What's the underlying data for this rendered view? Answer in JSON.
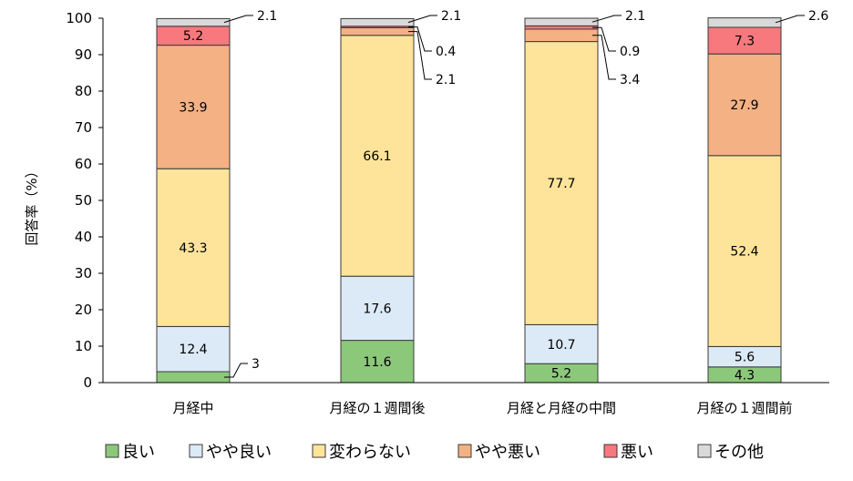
{
  "chart_data": {
    "type": "bar",
    "stacked": true,
    "orientation": "vertical",
    "ylabel": "回答率（%）",
    "xlabel": "",
    "ylim": [
      0,
      100
    ],
    "yticks": [
      0,
      10,
      20,
      30,
      40,
      50,
      60,
      70,
      80,
      90,
      100
    ],
    "grid": false,
    "legend_position": "bottom",
    "categories": [
      "月経中",
      "月経の１週間後",
      "月経と月経の中間",
      "月経の１週間前"
    ],
    "series": [
      {
        "name": "良い",
        "color": "#8cc87a",
        "values": [
          3,
          11.6,
          5.2,
          4.3
        ],
        "labels": [
          "3",
          "11.6",
          "5.2",
          "4.3"
        ]
      },
      {
        "name": "やや良い",
        "color": "#dce9f6",
        "values": [
          12.4,
          17.6,
          10.7,
          5.6
        ],
        "labels": [
          "12.4",
          "17.6",
          "10.7",
          "5.6"
        ]
      },
      {
        "name": "変わらない",
        "color": "#fde49a",
        "values": [
          43.3,
          66.1,
          77.7,
          52.4
        ],
        "labels": [
          "43.3",
          "66.1",
          "77.7",
          "52.4"
        ]
      },
      {
        "name": "やや悪い",
        "color": "#f4b183",
        "values": [
          33.9,
          2.1,
          3.4,
          27.9
        ],
        "labels": [
          "33.9",
          "2.1",
          "3.4",
          "27.9"
        ]
      },
      {
        "name": "悪い",
        "color": "#f7787d",
        "values": [
          5.2,
          0.4,
          0.9,
          7.3
        ],
        "labels": [
          "5.2",
          "0.4",
          "0.9",
          "7.3"
        ]
      },
      {
        "name": "その他",
        "color": "#d9d9d9",
        "values": [
          2.1,
          2.1,
          2.1,
          2.6
        ],
        "labels": [
          "2.1",
          "2.1",
          "2.1",
          "2.6"
        ]
      }
    ]
  }
}
